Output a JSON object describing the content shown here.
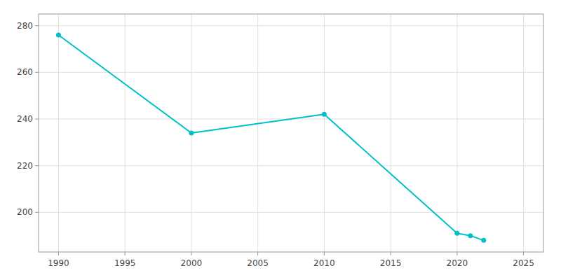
{
  "chart_data": {
    "type": "line",
    "x": [
      1990,
      2000,
      2010,
      2020,
      2021,
      2022
    ],
    "values": [
      276,
      234,
      242,
      191,
      190,
      188
    ],
    "color": "#00C0C8",
    "marker": "circle",
    "xlim": [
      1988.5,
      2026.5
    ],
    "ylim": [
      183,
      285
    ],
    "xticks": [
      1990,
      1995,
      2000,
      2005,
      2010,
      2015,
      2020,
      2025
    ],
    "yticks": [
      200,
      220,
      240,
      260,
      280
    ],
    "grid": true
  }
}
